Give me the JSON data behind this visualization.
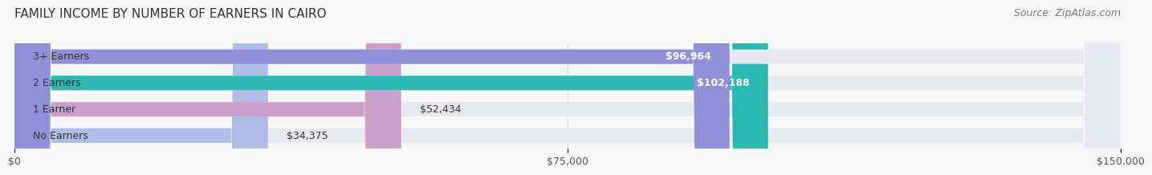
{
  "title": "FAMILY INCOME BY NUMBER OF EARNERS IN CAIRO",
  "source": "Source: ZipAtlas.com",
  "categories": [
    "No Earners",
    "1 Earner",
    "2 Earners",
    "3+ Earners"
  ],
  "values": [
    34375,
    52434,
    102188,
    96964
  ],
  "bar_colors": [
    "#b0bce8",
    "#c8a0c8",
    "#2ab8b0",
    "#9090d8"
  ],
  "label_colors": [
    "#555555",
    "#555555",
    "#ffffff",
    "#ffffff"
  ],
  "x_max": 150000,
  "x_ticks": [
    0,
    75000,
    150000
  ],
  "x_tick_labels": [
    "$0",
    "$75,000",
    "$150,000"
  ],
  "bar_bg_color": "#e8e8f0",
  "title_fontsize": 11,
  "source_fontsize": 9,
  "label_fontsize": 9,
  "tick_fontsize": 9,
  "bar_height": 0.55,
  "fig_width": 14.06,
  "fig_height": 2.34
}
